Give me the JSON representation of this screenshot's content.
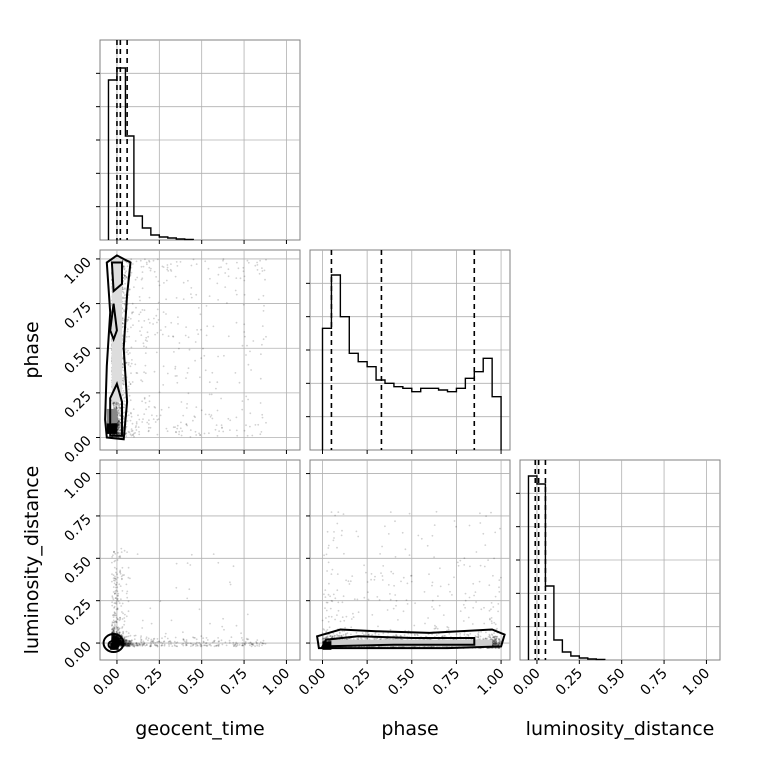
{
  "chart_data": {
    "type": "corner",
    "parameters": [
      "geocent_time",
      "phase",
      "luminosity_distance"
    ],
    "axis_ranges": {
      "geocent_time": [
        -0.1,
        1.08
      ],
      "phase": [
        -0.07,
        1.05
      ],
      "luminosity_distance": [
        -0.1,
        1.08
      ]
    },
    "ticks": [
      0.0,
      0.25,
      0.5,
      0.75,
      1.0
    ],
    "tick_labels": [
      "0.00",
      "0.25",
      "0.50",
      "0.75",
      "1.00"
    ],
    "grid": true,
    "colors": {
      "line": "#000000",
      "grid": "#b0b0b0",
      "frame": "#808080",
      "points": "#000000"
    },
    "histograms": {
      "geocent_time": {
        "edges": [
          -0.05,
          0.0,
          0.05,
          0.1,
          0.15,
          0.2,
          0.25,
          0.3,
          0.35,
          0.4,
          0.45
        ],
        "values": [
          0.8,
          0.86,
          0.52,
          0.12,
          0.06,
          0.025,
          0.015,
          0.01,
          0.005,
          0.003
        ],
        "ylim": [
          0,
          1.0
        ],
        "quantiles": [
          0.0,
          0.02,
          0.06
        ]
      },
      "phase": {
        "edges": [
          0.0,
          0.05,
          0.1,
          0.15,
          0.2,
          0.25,
          0.3,
          0.35,
          0.4,
          0.45,
          0.5,
          0.55,
          0.6,
          0.65,
          0.7,
          0.75,
          0.8,
          0.85,
          0.9,
          0.95,
          1.0
        ],
        "values": [
          0.73,
          1.05,
          0.8,
          0.58,
          0.53,
          0.5,
          0.42,
          0.4,
          0.38,
          0.37,
          0.35,
          0.37,
          0.37,
          0.36,
          0.35,
          0.37,
          0.43,
          0.47,
          0.55,
          0.32
        ],
        "ylim": [
          0,
          1.2
        ],
        "quantiles": [
          0.05,
          0.33,
          0.85
        ]
      },
      "luminosity_distance": {
        "edges": [
          -0.05,
          0.0,
          0.05,
          0.1,
          0.15,
          0.2,
          0.25,
          0.3,
          0.35,
          0.4
        ],
        "values": [
          0.92,
          0.88,
          0.37,
          0.1,
          0.04,
          0.02,
          0.01,
          0.005,
          0.003
        ],
        "ylim": [
          0,
          1.0
        ],
        "quantiles": [
          -0.01,
          0.01,
          0.05
        ]
      }
    },
    "scatter_2d": [
      {
        "x": "geocent_time",
        "y": "phase",
        "density_peak": {
          "x": -0.02,
          "y": 0.05
        },
        "contour_levels": [
          "inner",
          "outer"
        ]
      },
      {
        "x": "geocent_time",
        "y": "luminosity_distance",
        "density_peak": {
          "x": -0.02,
          "y": -0.02
        },
        "contour_levels": [
          "inner",
          "outer"
        ]
      },
      {
        "x": "phase",
        "y": "luminosity_distance",
        "density_peak": {
          "x": 0.03,
          "y": -0.02
        },
        "contour_levels": [
          "inner",
          "outer"
        ]
      }
    ]
  }
}
